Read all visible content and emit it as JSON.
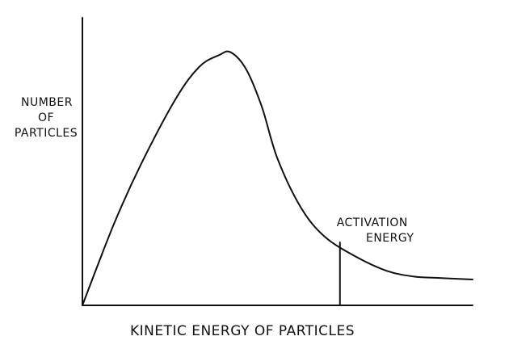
{
  "chart_data": {
    "type": "line",
    "title": "",
    "xlabel": "KINETIC ENERGY OF PARTICLES",
    "ylabel_lines": [
      "NUMBER",
      "OF",
      "PARTICLES"
    ],
    "xlim": [
      0,
      10
    ],
    "ylim": [
      0,
      10
    ],
    "grid": false,
    "legend": "none",
    "series": [
      {
        "x": [
          0,
          0.8,
          1.5,
          2.4,
          3.0,
          3.5,
          3.8,
          4.2,
          4.6,
          5.0,
          5.6,
          6.2,
          7.0,
          7.8,
          8.5,
          9.2,
          10.0
        ],
        "y": [
          0,
          2.8,
          4.9,
          7.2,
          8.3,
          8.7,
          8.8,
          8.2,
          6.9,
          5.1,
          3.4,
          2.4,
          1.7,
          1.2,
          1.0,
          0.95,
          0.9
        ]
      }
    ],
    "annotations": [
      {
        "text_lines": [
          "ACTIVATION",
          "ENERGY"
        ],
        "x": 6.6
      }
    ],
    "stroke_color": "#111111"
  }
}
